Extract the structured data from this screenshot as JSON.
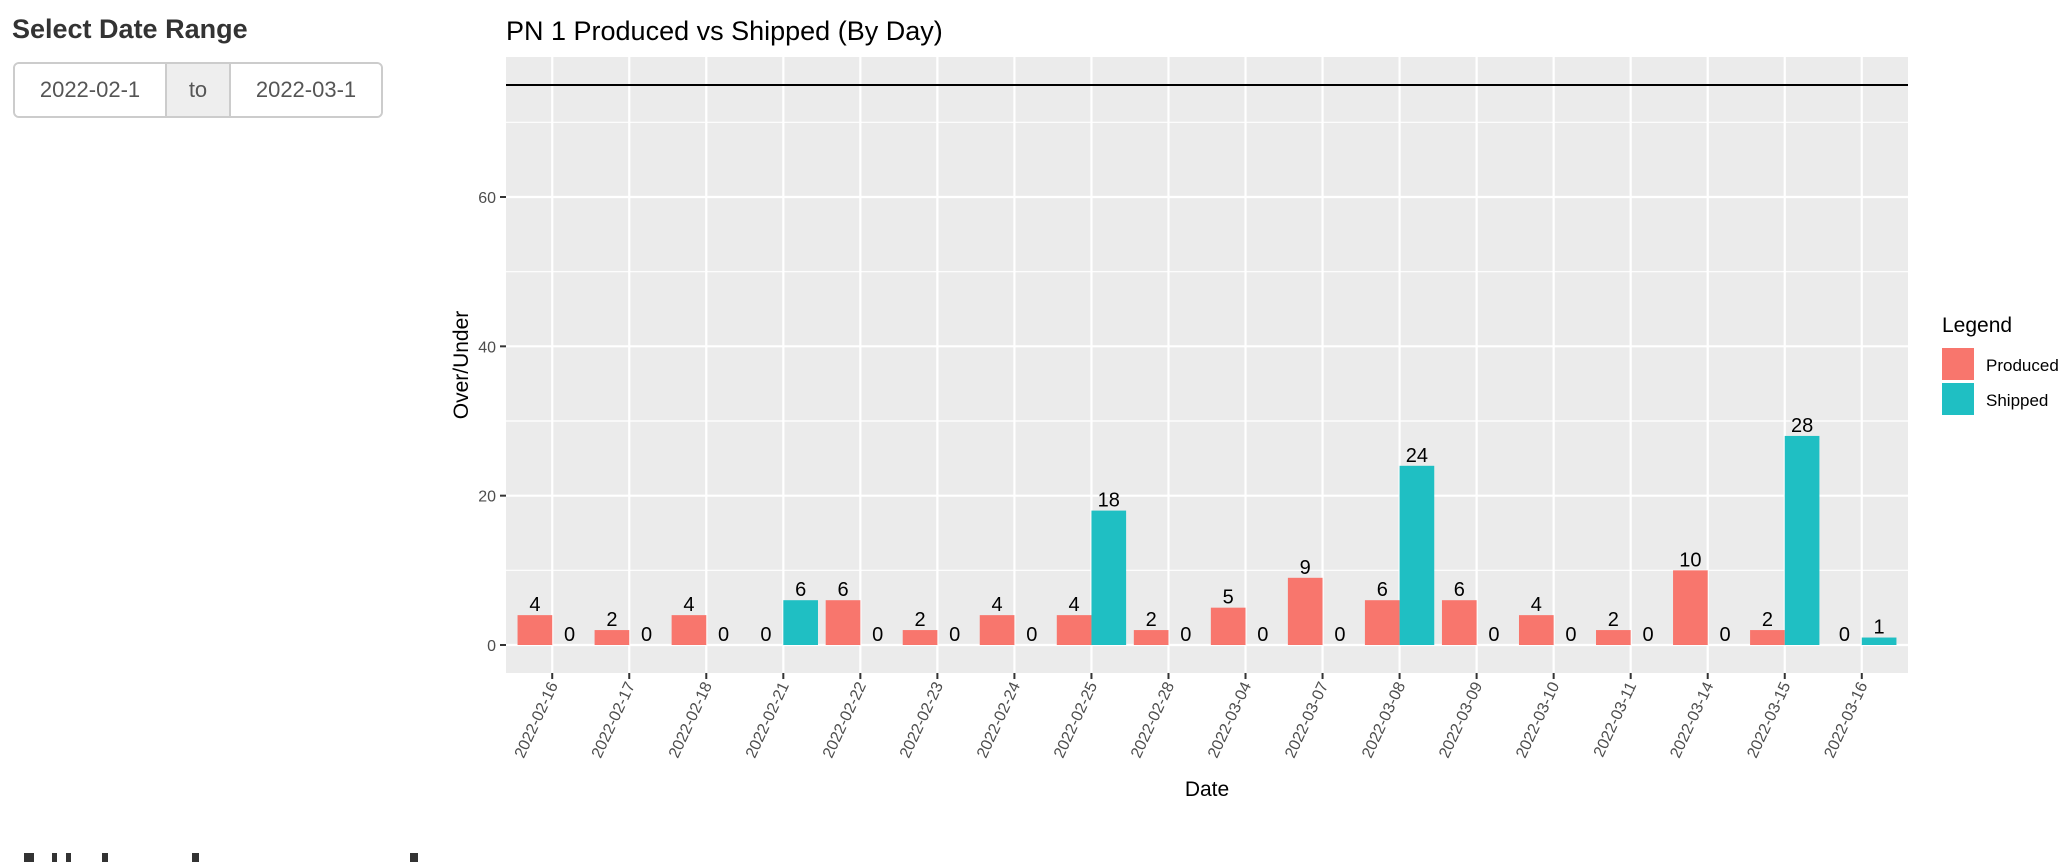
{
  "sidebar": {
    "title": "Select Date Range",
    "date_range": {
      "start_value": "2022-02-1",
      "separator": "to",
      "end_value": "2022-03-1"
    }
  },
  "colors": {
    "produced": "#F8766D",
    "shipped": "#1FBFC3",
    "panel_bg": "#EBEBEB",
    "grid": "#FFFFFF",
    "reference_line": "#000000"
  },
  "chart_data": {
    "type": "bar",
    "title": "PN 1 Produced vs Shipped (By Day)",
    "xlabel": "Date",
    "ylabel": "Over/Under",
    "ylim": [
      -3.75,
      78.75
    ],
    "yticks": [
      0,
      20,
      40,
      60
    ],
    "ytick_labels": [
      "0",
      "20",
      "40",
      "60"
    ],
    "grid": true,
    "reference_hline": 75,
    "legend": {
      "title": "Legend",
      "placement": "right",
      "entries": [
        "Produced",
        "Shipped"
      ]
    },
    "categories": [
      "2022-02-16",
      "2022-02-17",
      "2022-02-18",
      "2022-02-21",
      "2022-02-22",
      "2022-02-23",
      "2022-02-24",
      "2022-02-25",
      "2022-02-28",
      "2022-03-04",
      "2022-03-07",
      "2022-03-08",
      "2022-03-09",
      "2022-03-10",
      "2022-03-11",
      "2022-03-14",
      "2022-03-15",
      "2022-03-16"
    ],
    "series": [
      {
        "name": "Produced",
        "values": [
          4,
          2,
          4,
          0,
          6,
          2,
          4,
          4,
          2,
          5,
          9,
          6,
          6,
          4,
          2,
          10,
          2,
          0
        ]
      },
      {
        "name": "Shipped",
        "values": [
          0,
          0,
          0,
          6,
          0,
          0,
          0,
          18,
          0,
          0,
          0,
          24,
          0,
          0,
          0,
          0,
          28,
          1
        ]
      }
    ]
  }
}
